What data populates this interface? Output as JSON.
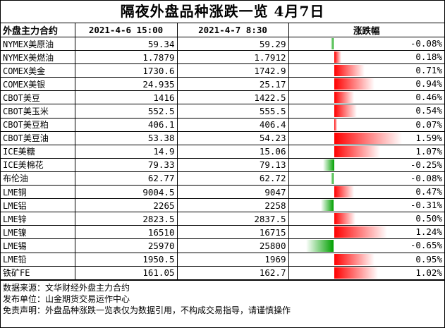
{
  "title": "隔夜外盘品种涨跌一览 4月7日",
  "headers": {
    "name": "外盘主力合约",
    "prev": "2021-4-6 15:00",
    "curr": "2021-4-7 8:30",
    "change": "涨跌幅"
  },
  "rows": [
    {
      "name": "NYMEX美原油",
      "prev": "59.34",
      "curr": "59.29",
      "pct": "-0.08%",
      "value": -0.08
    },
    {
      "name": "NYMEX美燃油",
      "prev": "1.7879",
      "curr": "1.7912",
      "pct": "0.18%",
      "value": 0.18
    },
    {
      "name": "COMEX美金",
      "prev": "1730.6",
      "curr": "1742.9",
      "pct": "0.71%",
      "value": 0.71
    },
    {
      "name": "COMEX美银",
      "prev": "24.935",
      "curr": "25.17",
      "pct": "0.94%",
      "value": 0.94
    },
    {
      "name": "CBOT美豆",
      "prev": "1416",
      "curr": "1422.5",
      "pct": "0.46%",
      "value": 0.46
    },
    {
      "name": "CBOT美玉米",
      "prev": "552.5",
      "curr": "555.5",
      "pct": "0.54%",
      "value": 0.54
    },
    {
      "name": "CBOT美豆粕",
      "prev": "406.1",
      "curr": "406.4",
      "pct": "0.07%",
      "value": 0.07
    },
    {
      "name": "CBOT美豆油",
      "prev": "53.38",
      "curr": "54.23",
      "pct": "1.59%",
      "value": 1.59
    },
    {
      "name": "ICE美糖",
      "prev": "14.9",
      "curr": "15.06",
      "pct": "1.07%",
      "value": 1.07
    },
    {
      "name": "ICE美棉花",
      "prev": "79.33",
      "curr": "79.13",
      "pct": "-0.25%",
      "value": -0.25
    },
    {
      "name": "布伦油",
      "prev": "62.77",
      "curr": "62.72",
      "pct": "-0.08%",
      "value": -0.08
    },
    {
      "name": "LME铜",
      "prev": "9004.5",
      "curr": "9047",
      "pct": "0.47%",
      "value": 0.47
    },
    {
      "name": "LME铝",
      "prev": "2265",
      "curr": "2258",
      "pct": "-0.31%",
      "value": -0.31
    },
    {
      "name": "LME锌",
      "prev": "2823.5",
      "curr": "2837.5",
      "pct": "0.50%",
      "value": 0.5
    },
    {
      "name": "LME镍",
      "prev": "16510",
      "curr": "16715",
      "pct": "1.24%",
      "value": 1.24
    },
    {
      "name": "LME锡",
      "prev": "25970",
      "curr": "25800",
      "pct": "-0.65%",
      "value": -0.65
    },
    {
      "name": "LME铅",
      "prev": "1950.5",
      "curr": "1969",
      "pct": "0.95%",
      "value": 0.95
    },
    {
      "name": "铁矿FE",
      "prev": "161.05",
      "curr": "162.7",
      "pct": "1.02%",
      "value": 1.02
    }
  ],
  "notes": [
    "数据来源：文华财经外盘主力合约",
    "发布单位：山金期货交易运作中心",
    "免责声明：外盘品种涨跌一览表仅为数据引用，不构成交易指导，请谨慎操作"
  ],
  "colors": {
    "positive": "#ff0000",
    "negative": "#00a000"
  }
}
